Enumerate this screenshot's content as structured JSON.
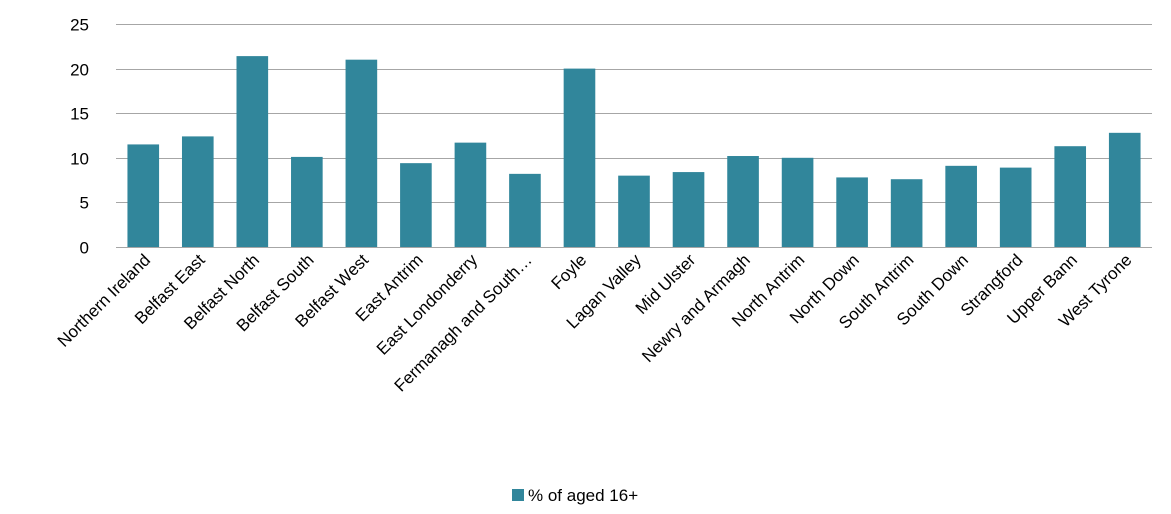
{
  "chart_data": {
    "type": "bar",
    "categories": [
      "Northern Ireland",
      "Belfast East",
      "Belfast North",
      "Belfast South",
      "Belfast West",
      "East Antrim",
      "East Londonderry",
      "Fermanagh and South…",
      "Foyle",
      "Lagan Valley",
      "Mid Ulster",
      "Newry and Armagh",
      "North Antrim",
      "North Down",
      "South Antrim",
      "South Down",
      "Strangford",
      "Upper Bann",
      "West Tyrone"
    ],
    "series": [
      {
        "name": "% of aged 16+",
        "color": "#31869b",
        "values": [
          11.5,
          12.4,
          21.4,
          10.1,
          21.0,
          9.4,
          11.7,
          8.2,
          20.0,
          8.0,
          8.4,
          10.2,
          10.0,
          7.8,
          7.6,
          9.1,
          8.9,
          11.3,
          12.8
        ]
      }
    ],
    "ylim": [
      0,
      25
    ],
    "yticks": [
      0,
      5,
      10,
      15,
      20,
      25
    ],
    "grid": true,
    "legend": "bottom",
    "gridline_color": "#a6a6a6"
  }
}
